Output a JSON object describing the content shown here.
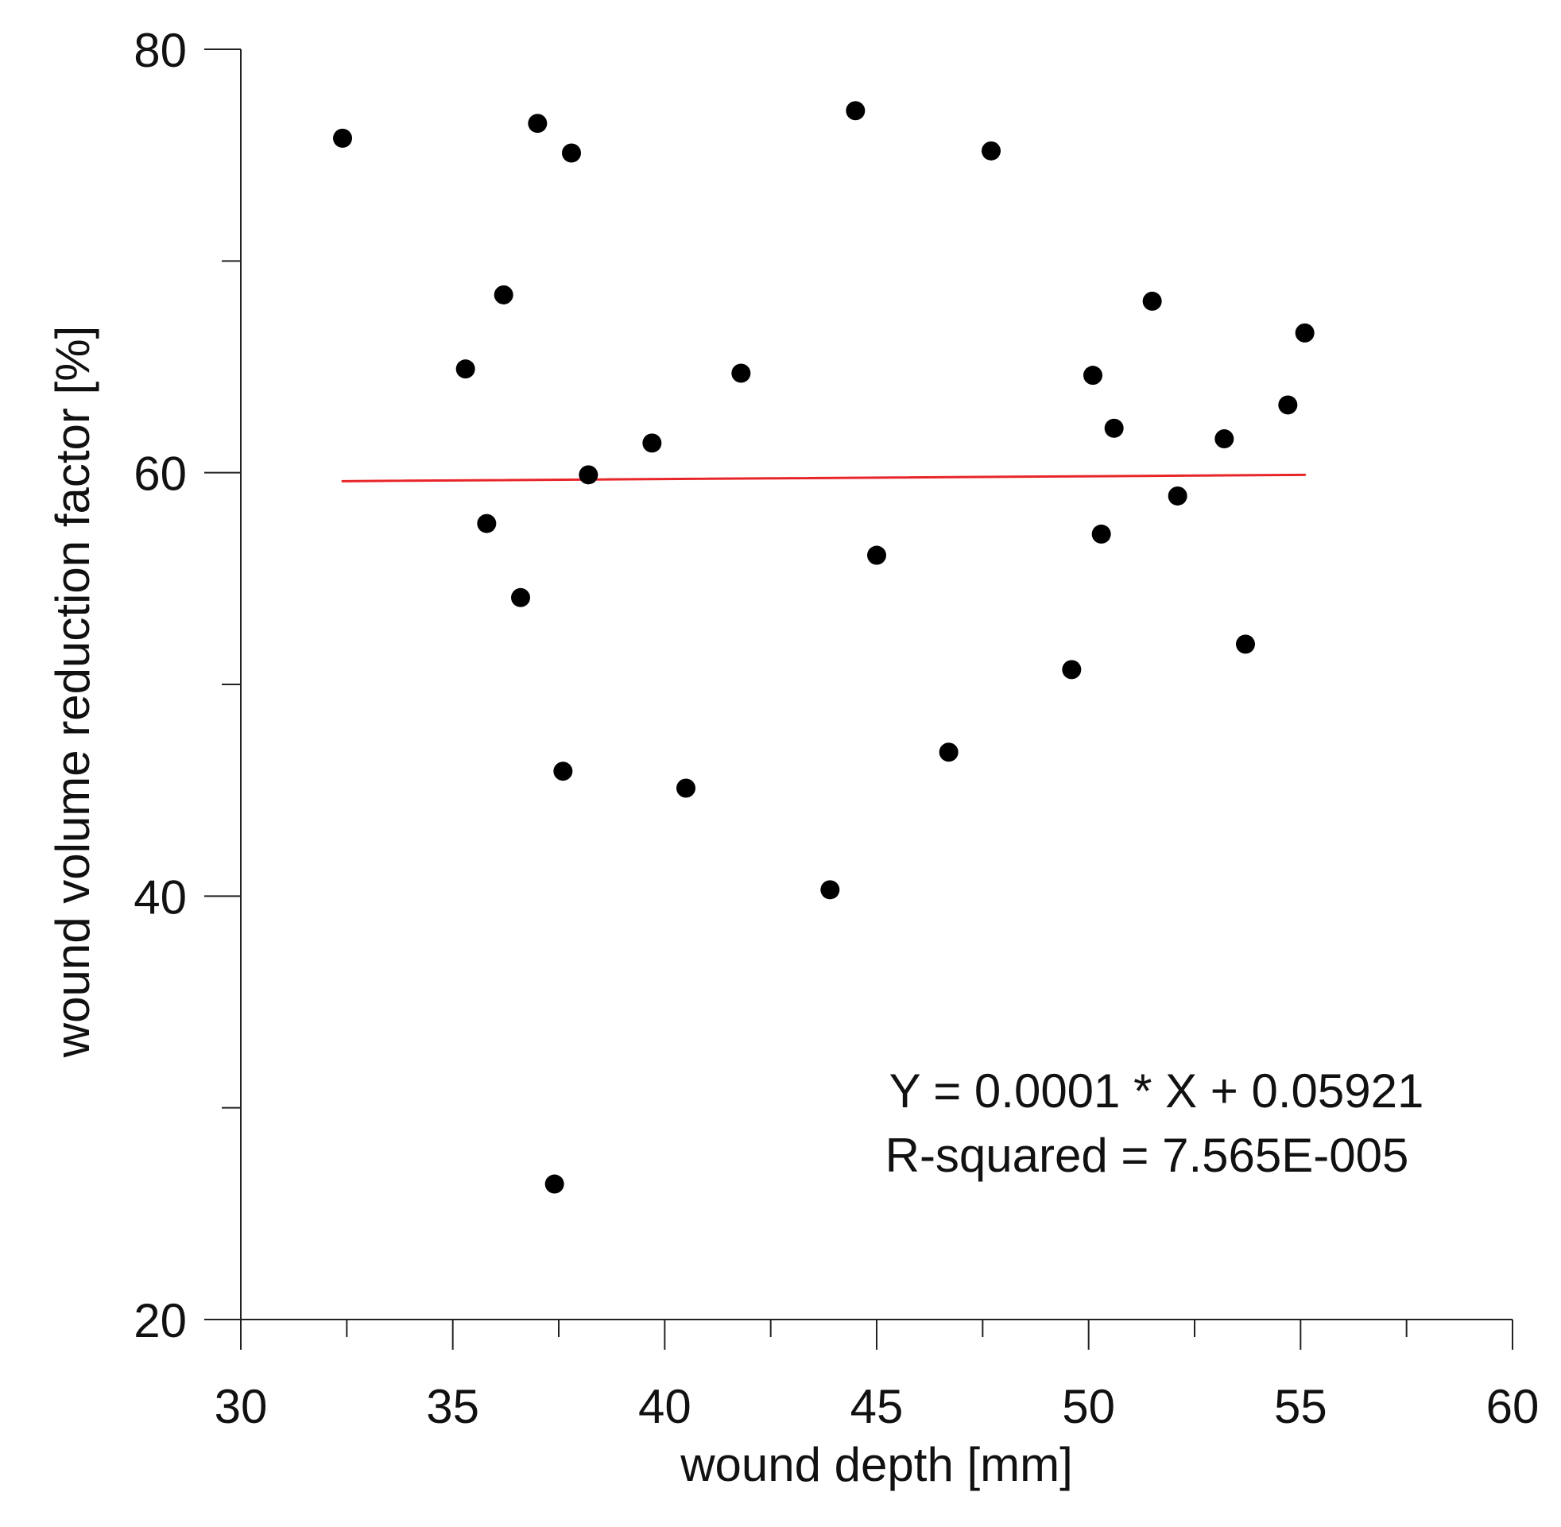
{
  "chart_data": {
    "type": "scatter",
    "title": "",
    "xlabel": "wound depth [mm]",
    "ylabel": "wound volume reduction factor  [%]",
    "xlim": [
      30,
      60
    ],
    "ylim": [
      20,
      80
    ],
    "x_major_ticks": [
      30,
      35,
      40,
      45,
      50,
      55,
      60
    ],
    "x_tick_labels": [
      "30",
      "35",
      "40",
      "45",
      "50",
      "55",
      "60"
    ],
    "x_minor_step": 2.5,
    "y_major_ticks": [
      20,
      40,
      60,
      80
    ],
    "y_tick_labels": [
      "20",
      "40",
      "60",
      "80"
    ],
    "y_minor_step": 10,
    "grid": false,
    "legend": "none",
    "point_color": "#000000",
    "fit_color": "#e8262a",
    "series": [
      {
        "points": [
          [
            32.4,
            75.8
          ],
          [
            35.3,
            64.9
          ],
          [
            35.8,
            57.6
          ],
          [
            36.2,
            68.4
          ],
          [
            36.6,
            54.1
          ],
          [
            37.0,
            76.5
          ],
          [
            37.8,
            75.1
          ],
          [
            38.2,
            59.9
          ],
          [
            37.6,
            45.9
          ],
          [
            37.4,
            26.4
          ],
          [
            39.7,
            61.4
          ],
          [
            40.5,
            45.1
          ],
          [
            41.8,
            64.7
          ],
          [
            43.9,
            40.3
          ],
          [
            44.5,
            77.1
          ],
          [
            45.0,
            56.1
          ],
          [
            46.7,
            46.8
          ],
          [
            47.7,
            75.2
          ],
          [
            49.6,
            50.7
          ],
          [
            50.1,
            64.6
          ],
          [
            50.3,
            57.1
          ],
          [
            50.6,
            62.1
          ],
          [
            51.5,
            68.1
          ],
          [
            52.1,
            58.9
          ],
          [
            53.2,
            61.6
          ],
          [
            53.7,
            51.9
          ],
          [
            54.7,
            63.2
          ],
          [
            55.1,
            66.6
          ]
        ]
      }
    ],
    "fit_line": {
      "x": [
        32.4,
        55.1
      ],
      "y": [
        59.6,
        59.9
      ]
    },
    "annotations": [
      "Y = 0.0001 * X + 0.05921",
      "R-squared = 7.565E-005"
    ]
  }
}
